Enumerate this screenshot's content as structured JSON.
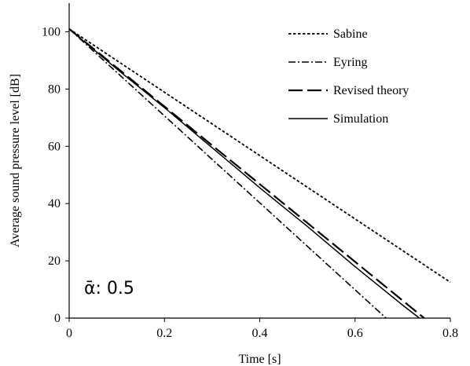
{
  "chart_data": {
    "type": "line",
    "xlabel": "Time [s]",
    "ylabel": "Average sound pressure level [dB]",
    "xlim": [
      0,
      0.8
    ],
    "ylim": [
      0,
      110
    ],
    "xticks": [
      "0",
      "0.2",
      "0.4",
      "0.6",
      "0.8"
    ],
    "yticks": [
      "0",
      "20",
      "40",
      "60",
      "80",
      "100"
    ],
    "grid": false,
    "legend_position": "top-right",
    "annotation": "ᾱ: 0.5",
    "series": [
      {
        "name": "Sabine",
        "style": "dotted",
        "x": [
          0,
          0.8
        ],
        "y": [
          101,
          12.5
        ]
      },
      {
        "name": "Eyring",
        "style": "dash-dot",
        "x": [
          0,
          0.665
        ],
        "y": [
          101,
          0
        ]
      },
      {
        "name": "Revised theory",
        "style": "long-dash",
        "x": [
          0,
          0.745
        ],
        "y": [
          101,
          0
        ]
      },
      {
        "name": "Simulation",
        "style": "solid",
        "x": [
          0,
          0.1,
          0.2,
          0.3,
          0.4,
          0.5,
          0.6,
          0.7,
          0.735
        ],
        "y": [
          101,
          87,
          73.5,
          59.5,
          45.5,
          32,
          18,
          4.5,
          0
        ]
      }
    ]
  }
}
